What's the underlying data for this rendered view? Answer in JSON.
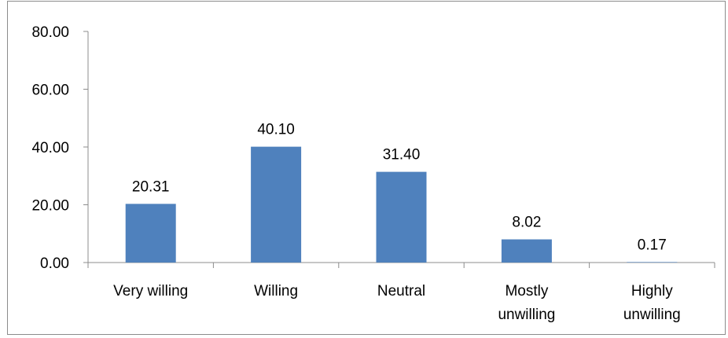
{
  "chart_data": {
    "type": "bar",
    "categories": [
      "Very willing",
      "Willing",
      "Neutral",
      "Mostly unwilling",
      "Highly unwilling"
    ],
    "category_lines": [
      [
        "Very willing"
      ],
      [
        "Willing"
      ],
      [
        "Neutral"
      ],
      [
        "Mostly",
        "unwilling"
      ],
      [
        "Highly",
        "unwilling"
      ]
    ],
    "values": [
      20.31,
      40.1,
      31.4,
      8.02,
      0.17
    ],
    "value_labels": [
      "20.31",
      "40.10",
      "31.40",
      "8.02",
      "0.17"
    ],
    "yticks": [
      "0.00",
      "20.00",
      "40.00",
      "60.00",
      "80.00"
    ],
    "ylim": [
      0,
      80
    ],
    "bar_color": "#4f81bd",
    "axis_color": "#8c8c8c",
    "grid": false,
    "legend": "none"
  }
}
